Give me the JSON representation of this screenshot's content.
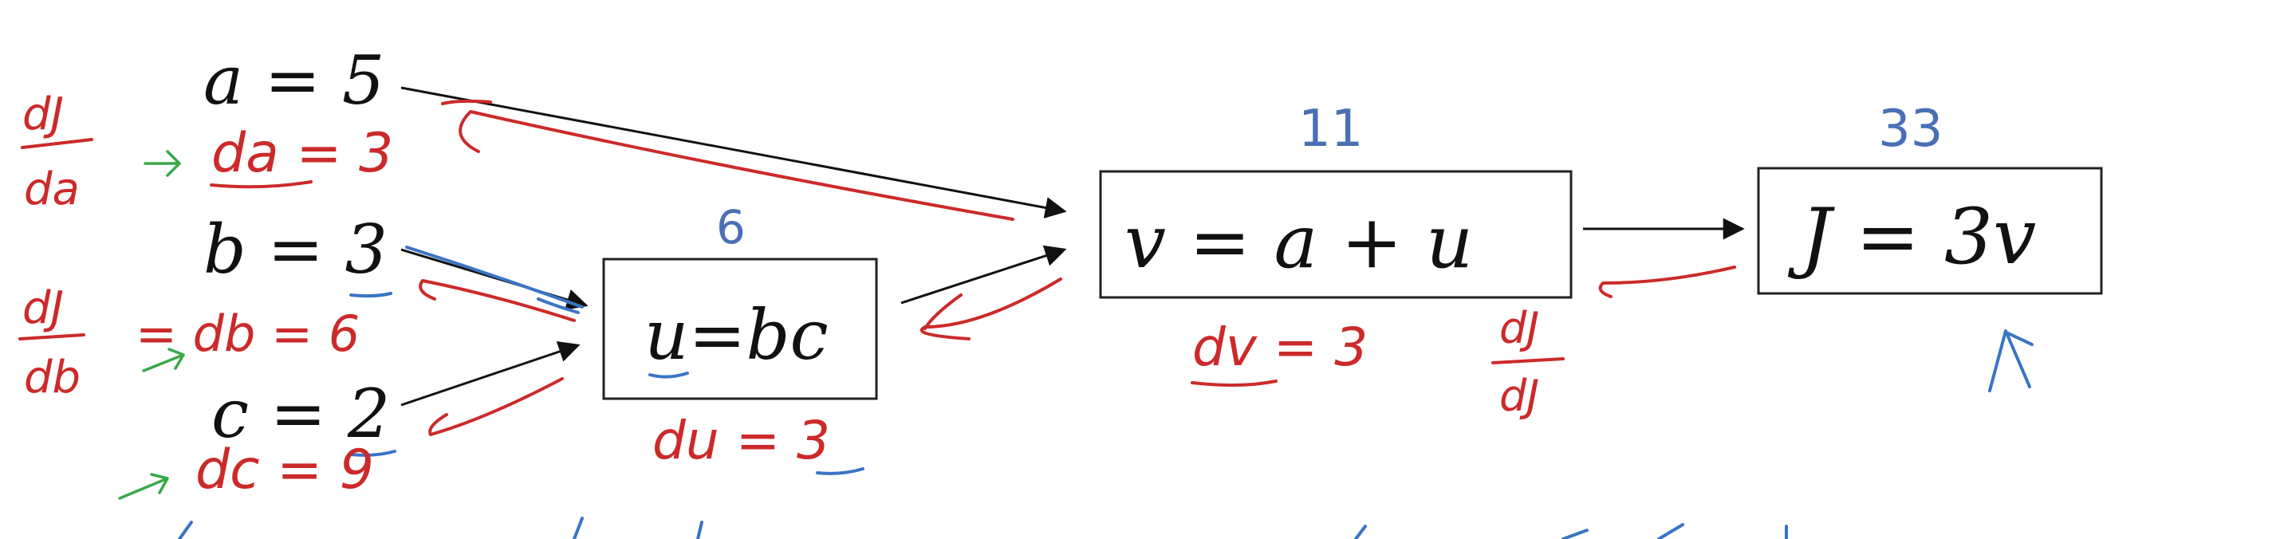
{
  "inputs": {
    "a": "a = 5",
    "b": "b = 3",
    "c": "c = 2"
  },
  "nodes": {
    "u": {
      "expr": "u=bc",
      "value": "6"
    },
    "v": {
      "expr": "v = a + u",
      "value": "11"
    },
    "j": {
      "expr": "J = 3v",
      "value": "33"
    }
  },
  "annotations": {
    "dj_da_num": "dJ",
    "dj_da_den": "da",
    "da": "da = 3",
    "dj_db_num": "dJ",
    "dj_db_den": "db",
    "db": "= db = 6",
    "dc": "dc = 9",
    "du": "du = 3",
    "dv": "dv = 3",
    "dj_dj_num": "dJ",
    "dj_dj_den": "dJ"
  },
  "colors": {
    "ink_black": "#111111",
    "ink_red": "#cc2a2a",
    "ink_green": "#3aa84a",
    "ink_blue": "#3a74c4",
    "value_blue": "#4a6fb5"
  }
}
